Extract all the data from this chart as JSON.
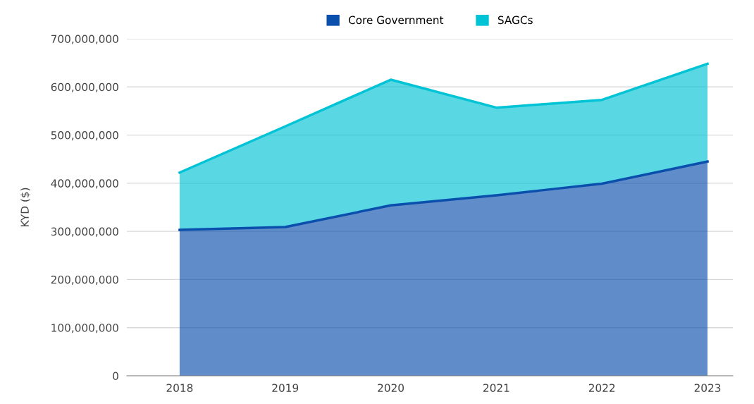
{
  "chart_data": {
    "type": "area",
    "stacked": true,
    "ylabel": "KYD ($)",
    "categories": [
      "2018",
      "2019",
      "2020",
      "2021",
      "2022",
      "2023"
    ],
    "series": [
      {
        "name": "Core Government",
        "color": "#0b4fad",
        "values": [
          303000000,
          309000000,
          354000000,
          375000000,
          399000000,
          445000000
        ]
      },
      {
        "name": "SAGCs",
        "color": "#00c3d6",
        "values": [
          119000000,
          209000000,
          261000000,
          182000000,
          174000000,
          203000000
        ]
      }
    ],
    "ylim": [
      0,
      700000000
    ],
    "yticks": [
      {
        "value": 0,
        "label": "0"
      },
      {
        "value": 100000000,
        "label": "100,000,000"
      },
      {
        "value": 200000000,
        "label": "200,000,000"
      },
      {
        "value": 300000000,
        "label": "300,000,000"
      },
      {
        "value": 400000000,
        "label": "400,000,000"
      },
      {
        "value": 500000000,
        "label": "500,000,000"
      },
      {
        "value": 600000000,
        "label": "600,000,000"
      },
      {
        "value": 700000000,
        "label": "700,000,000"
      }
    ],
    "grid": "y",
    "legend": "top",
    "marker": "none",
    "line_style": "solid"
  }
}
